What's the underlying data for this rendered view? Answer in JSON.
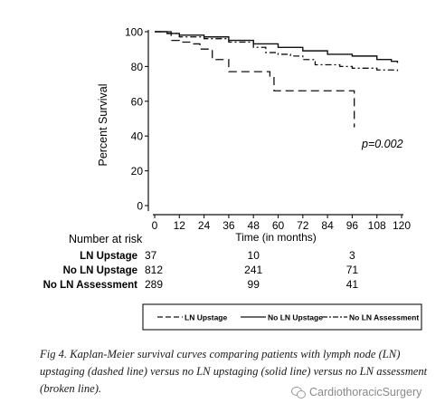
{
  "chart_data": {
    "type": "line",
    "title": "",
    "xlabel": "Time (in months)",
    "ylabel": "Percent Survival",
    "xlim": [
      0,
      120
    ],
    "ylim": [
      0,
      100
    ],
    "x_ticks": [
      "0",
      "12",
      "24",
      "36",
      "48",
      "60",
      "72",
      "84",
      "96",
      "108",
      "120"
    ],
    "y_ticks": [
      "0",
      "20",
      "40",
      "60",
      "80",
      "100"
    ],
    "annotation": "p=0.002",
    "grid": false,
    "legend_position": "bottom",
    "series": [
      {
        "name": "LN Upstage",
        "style": "dashed",
        "points": [
          [
            0,
            100
          ],
          [
            6,
            100
          ],
          [
            8,
            95
          ],
          [
            12,
            94
          ],
          [
            18,
            93
          ],
          [
            22,
            90
          ],
          [
            26,
            90
          ],
          [
            28,
            84
          ],
          [
            34,
            84
          ],
          [
            36,
            77
          ],
          [
            50,
            77
          ],
          [
            56,
            74
          ],
          [
            58,
            66
          ],
          [
            96,
            66
          ],
          [
            97,
            45
          ]
        ]
      },
      {
        "name": "No LN Upstage",
        "style": "solid",
        "points": [
          [
            0,
            100
          ],
          [
            6,
            99
          ],
          [
            12,
            98
          ],
          [
            24,
            97
          ],
          [
            36,
            95
          ],
          [
            48,
            93
          ],
          [
            60,
            91
          ],
          [
            72,
            89
          ],
          [
            84,
            87
          ],
          [
            96,
            86
          ],
          [
            108,
            84
          ],
          [
            115,
            83
          ],
          [
            118,
            82
          ]
        ]
      },
      {
        "name": "No LN Assessment",
        "style": "dash-dot",
        "points": [
          [
            0,
            100
          ],
          [
            6,
            99
          ],
          [
            12,
            97
          ],
          [
            24,
            96
          ],
          [
            36,
            94
          ],
          [
            48,
            91
          ],
          [
            54,
            88
          ],
          [
            60,
            87
          ],
          [
            66,
            86
          ],
          [
            72,
            84
          ],
          [
            78,
            81
          ],
          [
            84,
            81
          ],
          [
            90,
            80
          ],
          [
            96,
            79
          ],
          [
            108,
            78
          ],
          [
            114,
            78
          ],
          [
            118,
            77
          ]
        ]
      }
    ]
  },
  "risk_table": {
    "heading": "Number at risk",
    "rows": [
      {
        "label": "LN Upstage",
        "values": [
          "37",
          "10",
          "3"
        ]
      },
      {
        "label": "No LN Upstage",
        "values": [
          "812",
          "241",
          "71"
        ]
      },
      {
        "label": "No LN Assessment",
        "values": [
          "289",
          "99",
          "41"
        ]
      }
    ],
    "times": [
      0,
      48,
      96
    ]
  },
  "legend": {
    "items": [
      {
        "label": "LN Upstage",
        "style": "dashed"
      },
      {
        "label": "No LN Upstage",
        "style": "solid"
      },
      {
        "label": "No LN Assessment",
        "style": "dash-dot"
      }
    ]
  },
  "caption": "Fig 4.  Kaplan-Meier survival curves comparing patients with lymph node (LN) upstaging (dashed line) versus no LN upstaging (solid line) versus no LN assessment (broken line).",
  "watermark": "CardiothoracicSurgery",
  "colors": {
    "ink": "#111111",
    "background": "#ffffff",
    "watermark": "#8a8a8a"
  }
}
